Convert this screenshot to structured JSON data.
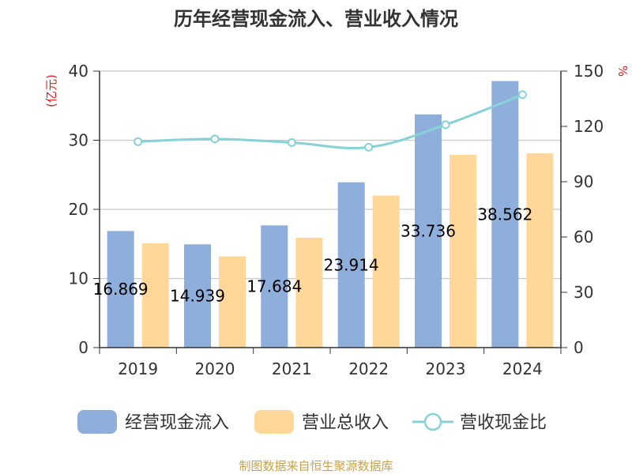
{
  "chart_data": {
    "type": "bar",
    "title": "历年经营现金流入、营业收入情况",
    "categories": [
      "2019",
      "2020",
      "2021",
      "2022",
      "2023",
      "2024"
    ],
    "series": [
      {
        "name": "经营现金流入",
        "kind": "bar",
        "axis": "left",
        "color": "#8eaedc",
        "values": [
          16.869,
          14.939,
          17.684,
          23.914,
          33.736,
          38.562
        ],
        "labels": [
          "16.869",
          "14.939",
          "17.684",
          "23.914",
          "33.736",
          "38.562"
        ]
      },
      {
        "name": "营业总收入",
        "kind": "bar",
        "axis": "left",
        "color": "#ffd899",
        "values": [
          15.1,
          13.2,
          15.9,
          22.0,
          27.9,
          28.1
        ]
      },
      {
        "name": "营收现金比",
        "kind": "line",
        "axis": "right",
        "color": "#86d2d6",
        "values": [
          111.7,
          113.2,
          111.2,
          108.7,
          120.9,
          137.2
        ]
      }
    ],
    "y_left": {
      "unit": "(亿元)",
      "min": 0,
      "max": 40,
      "ticks": [
        0,
        10,
        20,
        30,
        40
      ]
    },
    "y_right": {
      "unit": "%",
      "min": 0,
      "max": 150,
      "ticks": [
        0,
        30,
        60,
        90,
        120,
        150
      ]
    },
    "grid": true,
    "legend_position": "bottom",
    "unit_color": "#e0201c"
  },
  "footer": "制图数据来自恒生聚源数据库"
}
